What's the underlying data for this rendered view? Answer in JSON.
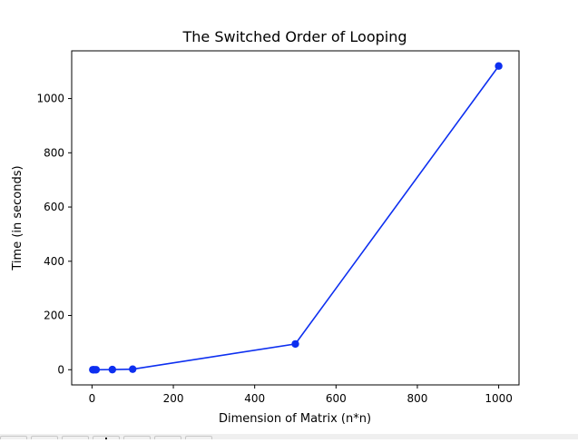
{
  "chart_data": {
    "type": "line",
    "title": "The Switched Order of Looping",
    "xlabel": "Dimension of Matrix (n*n)",
    "ylabel": "Time (in seconds)",
    "xlim": [
      -50,
      1050
    ],
    "ylim": [
      -56,
      1176
    ],
    "xticks": [
      0,
      200,
      400,
      600,
      800,
      1000
    ],
    "yticks": [
      0,
      200,
      400,
      600,
      800,
      1000
    ],
    "grid": false,
    "series": [
      {
        "color": "#0d2ff0",
        "marker": "circle",
        "x": [
          2,
          5,
          10,
          50,
          100,
          500,
          1000
        ],
        "y": [
          0,
          0,
          0,
          0.5,
          2,
          95,
          1120
        ]
      }
    ]
  },
  "toolbar": {
    "buttons": [
      {
        "icon": "home-icon"
      },
      {
        "icon": "back-icon"
      },
      {
        "icon": "forward-icon"
      },
      {
        "icon": "pan-icon"
      },
      {
        "icon": "zoom-icon"
      },
      {
        "icon": "configure-subplots-icon"
      },
      {
        "icon": "save-icon"
      }
    ]
  }
}
